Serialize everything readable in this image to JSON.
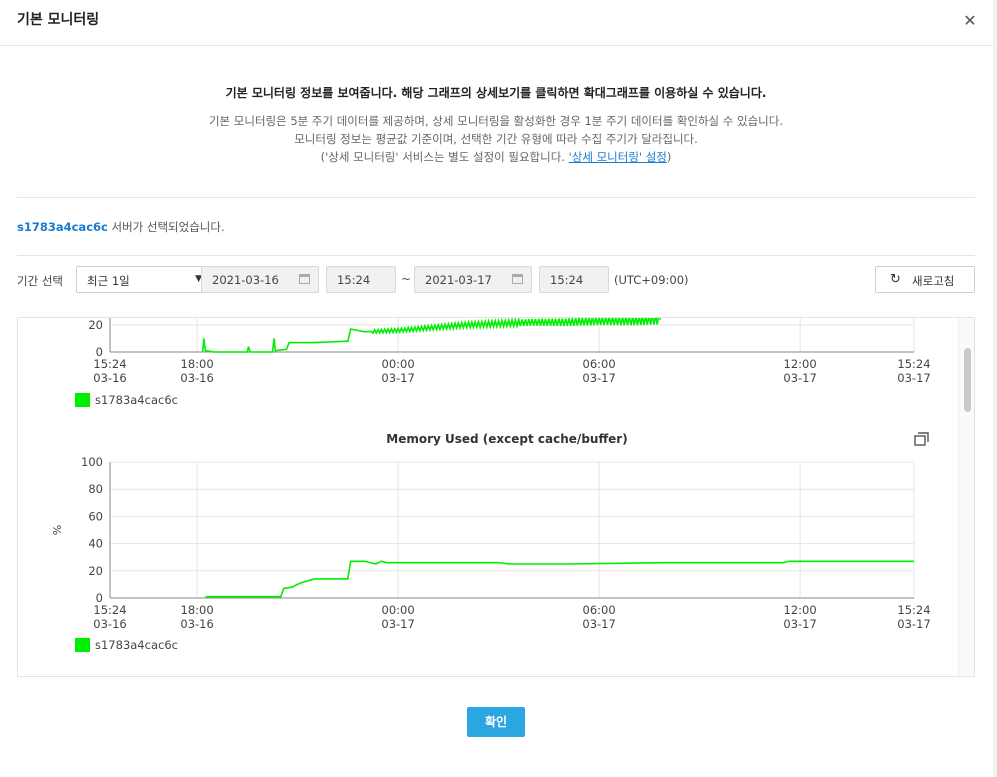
{
  "modal": {
    "title": "기본 모니터링",
    "close_icon": "close-icon"
  },
  "intro": {
    "lead": "기본 모니터링 정보를 보여줍니다. 해당 그래프의 상세보기를 클릭하면 확대그래프를 이용하실 수 있습니다.",
    "line1": "기본 모니터링은 5분 주기 데이터를 제공하며, 상세 모니터링을 활성화한 경우 1분 주기 데이터를 확인하실 수 있습니다.",
    "line2": "모니터링 정보는 평균값 기준이며, 선택한 기간 유형에 따라 수집 주기가 달라집니다.",
    "line3_prefix": "('상세 모니터링' 서비스는 별도 설정이 필요합니다. ",
    "line3_link": "'상세 모니터링' 설정",
    "line3_suffix": ")"
  },
  "server": {
    "name": "s1783a4cac6c",
    "suffix": " 서버가 선택되었습니다."
  },
  "filter": {
    "label": "기간 선택",
    "period_selected": "최근 1일",
    "start_date": "2021-03-16",
    "start_time": "15:24",
    "tilde": "~",
    "end_date": "2021-03-17",
    "end_time": "15:24",
    "timezone": "(UTC+09:00)",
    "refresh_label": "새로고침",
    "refresh_icon": "refresh-icon",
    "calendar_icon": "calendar-icon"
  },
  "footer": {
    "ok_label": "확인"
  },
  "colors": {
    "series": "#00ee00",
    "link": "#1a7bd0",
    "primary_button": "#2aa7e0"
  },
  "chart_data": [
    {
      "type": "line",
      "title": "",
      "ylabel": "",
      "visible_yticks": [
        "20",
        "0"
      ],
      "xticks": [
        {
          "time": "15:24",
          "date": "03-16"
        },
        {
          "time": "18:00",
          "date": "03-16"
        },
        {
          "time": "00:00",
          "date": "03-17"
        },
        {
          "time": "06:00",
          "date": "03-17"
        },
        {
          "time": "12:00",
          "date": "03-17"
        },
        {
          "time": "15:24",
          "date": "03-17"
        }
      ],
      "series": [
        {
          "name": "s1783a4cac6c",
          "color": "#00ee00",
          "noisy": true,
          "points": [
            [
              "03-16 18:10",
              0
            ],
            [
              "03-16 18:12",
              10
            ],
            [
              "03-16 18:15",
              1
            ],
            [
              "03-16 18:30",
              0
            ],
            [
              "03-16 19:00",
              0
            ],
            [
              "03-16 19:30",
              0
            ],
            [
              "03-16 19:32",
              4
            ],
            [
              "03-16 19:35",
              0
            ],
            [
              "03-16 20:15",
              0
            ],
            [
              "03-16 20:18",
              10
            ],
            [
              "03-16 20:20",
              1
            ],
            [
              "03-16 20:40",
              2
            ],
            [
              "03-16 20:45",
              7
            ],
            [
              "03-16 21:30",
              7
            ],
            [
              "03-16 22:30",
              8
            ],
            [
              "03-16 22:35",
              17
            ],
            [
              "03-16 23:00",
              15
            ],
            [
              "03-17 00:00",
              16
            ],
            [
              "03-17 01:00",
              18
            ],
            [
              "03-17 02:00",
              20
            ],
            [
              "03-17 03:00",
              21
            ],
            [
              "03-17 04:00",
              22
            ],
            [
              "03-17 05:00",
              22
            ],
            [
              "03-17 06:00",
              23
            ],
            [
              "03-17 07:00",
              23
            ],
            [
              "03-17 07:50",
              24
            ]
          ]
        }
      ]
    },
    {
      "type": "line",
      "title": "Memory Used (except cache/buffer)",
      "ylabel": "%",
      "ylim": [
        0,
        100
      ],
      "yticks": [
        0,
        20,
        40,
        60,
        80,
        100
      ],
      "grid": true,
      "expand_icon": "expand-icon",
      "xticks": [
        {
          "time": "15:24",
          "date": "03-16"
        },
        {
          "time": "18:00",
          "date": "03-16"
        },
        {
          "time": "00:00",
          "date": "03-17"
        },
        {
          "time": "06:00",
          "date": "03-17"
        },
        {
          "time": "12:00",
          "date": "03-17"
        },
        {
          "time": "15:24",
          "date": "03-17"
        }
      ],
      "series": [
        {
          "name": "s1783a4cac6c",
          "color": "#00ee00",
          "points": [
            [
              "03-16 18:15",
              1
            ],
            [
              "03-16 19:30",
              1
            ],
            [
              "03-16 20:00",
              1
            ],
            [
              "03-16 20:30",
              1
            ],
            [
              "03-16 20:35",
              7
            ],
            [
              "03-16 20:50",
              8
            ],
            [
              "03-16 21:05",
              11
            ],
            [
              "03-16 21:30",
              14
            ],
            [
              "03-16 22:00",
              14
            ],
            [
              "03-16 22:30",
              14
            ],
            [
              "03-16 22:35",
              27
            ],
            [
              "03-16 23:00",
              27
            ],
            [
              "03-16 23:20",
              25
            ],
            [
              "03-16 23:30",
              27
            ],
            [
              "03-16 23:40",
              26
            ],
            [
              "03-17 00:00",
              26
            ],
            [
              "03-17 03:00",
              26
            ],
            [
              "03-17 03:20",
              25
            ],
            [
              "03-17 05:00",
              25
            ],
            [
              "03-17 08:00",
              26
            ],
            [
              "03-17 11:30",
              26
            ],
            [
              "03-17 11:40",
              27
            ],
            [
              "03-17 13:00",
              27
            ],
            [
              "03-17 15:24",
              27
            ]
          ]
        }
      ]
    }
  ]
}
